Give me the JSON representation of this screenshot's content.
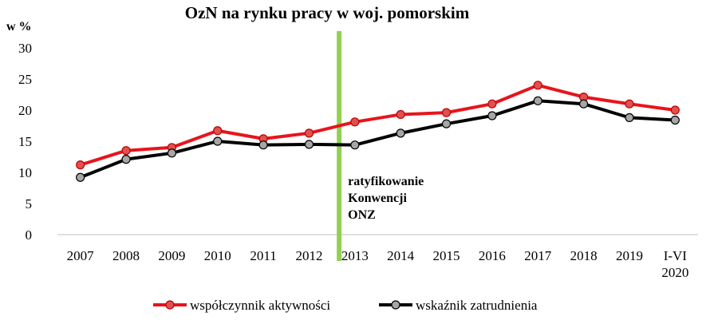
{
  "chart_data": {
    "type": "line",
    "title": "OzN na rynku pracy w woj. pomorskim",
    "ylabel": "w %",
    "xlabel": "",
    "ylim": [
      0,
      30
    ],
    "yticks": [
      "0",
      "5",
      "10",
      "15",
      "20",
      "25",
      "30"
    ],
    "categories": [
      "2007",
      "2008",
      "2009",
      "2010",
      "2011",
      "2012",
      "2013",
      "2014",
      "2015",
      "2016",
      "2017",
      "2018",
      "2019",
      "I-VI 2020"
    ],
    "category_lines": [
      [
        "2007"
      ],
      [
        "2008"
      ],
      [
        "2009"
      ],
      [
        "2010"
      ],
      [
        "2011"
      ],
      [
        "2012"
      ],
      [
        "2013"
      ],
      [
        "2014"
      ],
      [
        "2015"
      ],
      [
        "2016"
      ],
      [
        "2017"
      ],
      [
        "2018"
      ],
      [
        "2019"
      ],
      [
        "I-VI",
        "2020"
      ]
    ],
    "series": [
      {
        "name": "współczynnik aktywności",
        "color": "#e8141c",
        "marker_color": "#e05050",
        "values": [
          11.2,
          13.5,
          14.0,
          16.7,
          15.4,
          16.3,
          18.1,
          19.3,
          19.6,
          21.0,
          24.0,
          22.1,
          21.0,
          20.0
        ]
      },
      {
        "name": "wskaźnik zatrudnienia",
        "color": "#000000",
        "marker_color": "#a6a6a6",
        "values": [
          9.2,
          12.1,
          13.1,
          15.0,
          14.4,
          14.5,
          14.4,
          16.3,
          17.8,
          19.1,
          21.5,
          21.0,
          18.8,
          18.4
        ]
      }
    ],
    "grid": false,
    "legend_position": "bottom",
    "annotation": {
      "text_lines": [
        "ratyfikowanie",
        "Konwencji",
        "ONZ"
      ],
      "between": [
        "2012",
        "2013"
      ],
      "line_color": "#92d050"
    }
  }
}
